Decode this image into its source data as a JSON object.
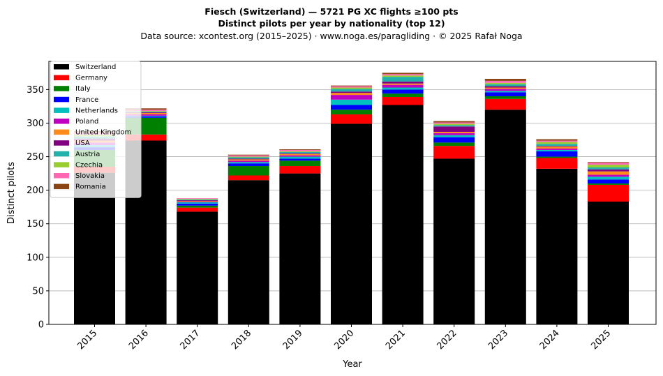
{
  "chart_data": {
    "type": "bar",
    "stacked": true,
    "title": "Fiesch (Switzerland)  —  5721 PG XC flights ≥100 pts",
    "subtitle": "Distinct pilots per year by nationality (top 12)",
    "source": "Data source: xcontest.org (2015–2025)  ·  www.noga.es/paragliding  ·  © 2025 Rafał Noga",
    "xlabel": "Year",
    "ylabel": "Distinct pilots",
    "ylim": [
      0,
      392
    ],
    "yticks": [
      0,
      50,
      100,
      150,
      200,
      250,
      300,
      350
    ],
    "grid": "y",
    "legend_position": "top-left",
    "categories": [
      "2015",
      "2016",
      "2017",
      "2018",
      "2019",
      "2020",
      "2021",
      "2022",
      "2023",
      "2024",
      "2025"
    ],
    "series": [
      {
        "name": "Switzerland",
        "color": "#000000",
        "values": [
          226,
          274,
          168,
          215,
          225,
          299,
          327,
          247,
          320,
          232,
          183
        ]
      },
      {
        "name": "Germany",
        "color": "#ff0000",
        "values": [
          9,
          9,
          6,
          7,
          11,
          14,
          12,
          19,
          16,
          16,
          25
        ]
      },
      {
        "name": "Italy",
        "color": "#008000",
        "values": [
          25,
          25,
          3,
          14,
          8,
          7,
          5,
          5,
          4,
          2,
          2
        ]
      },
      {
        "name": "France",
        "color": "#0000ff",
        "values": [
          4,
          2,
          3,
          4,
          3,
          7,
          6,
          8,
          6,
          8,
          6
        ]
      },
      {
        "name": "Netherlands",
        "color": "#00c0c0",
        "values": [
          3,
          1,
          2,
          2,
          3,
          8,
          3,
          3,
          2,
          2,
          4
        ]
      },
      {
        "name": "Poland",
        "color": "#c000c0",
        "values": [
          4,
          2,
          1,
          2,
          2,
          7,
          4,
          3,
          3,
          2,
          3
        ]
      },
      {
        "name": "United Kingdom",
        "color": "#ff8c1a",
        "values": [
          3,
          2,
          1,
          2,
          2,
          3,
          2,
          2,
          2,
          3,
          5
        ]
      },
      {
        "name": "USA",
        "color": "#800080",
        "values": [
          3,
          1,
          1,
          1,
          1,
          2,
          3,
          8,
          2,
          1,
          3
        ]
      },
      {
        "name": "Austria",
        "color": "#20b2aa",
        "values": [
          3,
          1,
          1,
          2,
          2,
          4,
          7,
          2,
          3,
          3,
          3
        ]
      },
      {
        "name": "Czechia",
        "color": "#9acd32",
        "values": [
          3,
          1,
          1,
          1,
          1,
          2,
          2,
          2,
          2,
          3,
          4
        ]
      },
      {
        "name": "Slovakia",
        "color": "#ff69b4",
        "values": [
          3,
          2,
          1,
          2,
          2,
          2,
          2,
          2,
          3,
          2,
          3
        ]
      },
      {
        "name": "Romania",
        "color": "#8b4513",
        "values": [
          2,
          2,
          0,
          1,
          1,
          1,
          2,
          2,
          3,
          2,
          1
        ]
      }
    ]
  }
}
